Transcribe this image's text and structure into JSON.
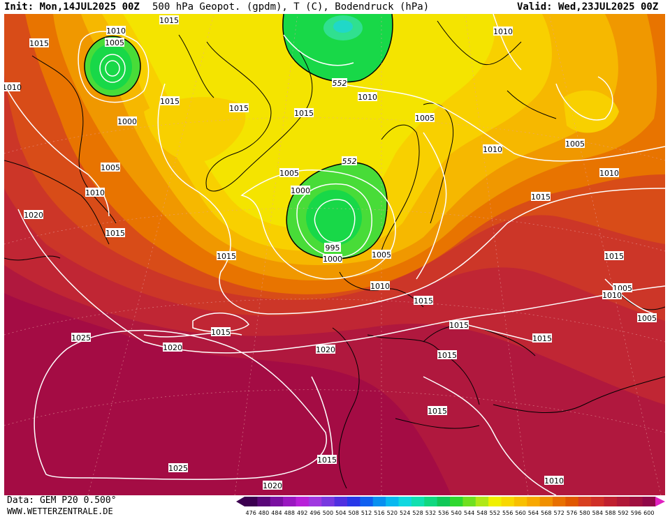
{
  "header": {
    "init": "Init: Mon,14JUL2025 00Z",
    "title": "500 hPa Geopot. (gpdm), T (C), Bodendruck (hPa)",
    "valid": "Valid: Wed,23JUL2025 00Z"
  },
  "footer": {
    "data_source": "Data: GEM P20 0.500°",
    "site": "WWW.WETTERZENTRALE.DE"
  },
  "legend": {
    "values": [
      "476",
      "480",
      "484",
      "488",
      "492",
      "496",
      "500",
      "504",
      "508",
      "512",
      "516",
      "520",
      "524",
      "528",
      "532",
      "536",
      "540",
      "544",
      "548",
      "552",
      "556",
      "560",
      "564",
      "568",
      "572",
      "576",
      "580",
      "584",
      "588",
      "592",
      "596",
      "600"
    ],
    "colors": [
      "#3c0050",
      "#5a0878",
      "#7a10a0",
      "#9a18c0",
      "#b820d8",
      "#a038e0",
      "#7838e0",
      "#5030e0",
      "#2838e8",
      "#1060f0",
      "#0890f0",
      "#08b8f0",
      "#10d8e0",
      "#10e0b0",
      "#10d880",
      "#10c858",
      "#30d830",
      "#70e020",
      "#b0e818",
      "#f0f000",
      "#f8d800",
      "#f8c000",
      "#f8a800",
      "#f09000",
      "#e87000",
      "#e05800",
      "#d84020",
      "#d03028",
      "#c02030",
      "#b01838",
      "#a01040",
      "#900848"
    ]
  },
  "map": {
    "isobar_labels": [
      "1015",
      "1010",
      "1005",
      "1000",
      "995",
      "1020",
      "1025"
    ],
    "geopot_labels": [
      "552"
    ],
    "colors": {
      "geopot_540": "#18d848",
      "geopot_544": "#48dc38",
      "geopot_552": "#f4e400",
      "geopot_556": "#f8d000",
      "geopot_560": "#f6b800",
      "geopot_564": "#f09800",
      "geopot_568": "#e87400",
      "geopot_572": "#d84c18",
      "geopot_576": "#cc3628",
      "geopot_580": "#c02634",
      "geopot_584": "#b0183e",
      "geopot_588": "#a40c44",
      "land_outline": "#000000",
      "isobar": "#ffffff"
    }
  }
}
